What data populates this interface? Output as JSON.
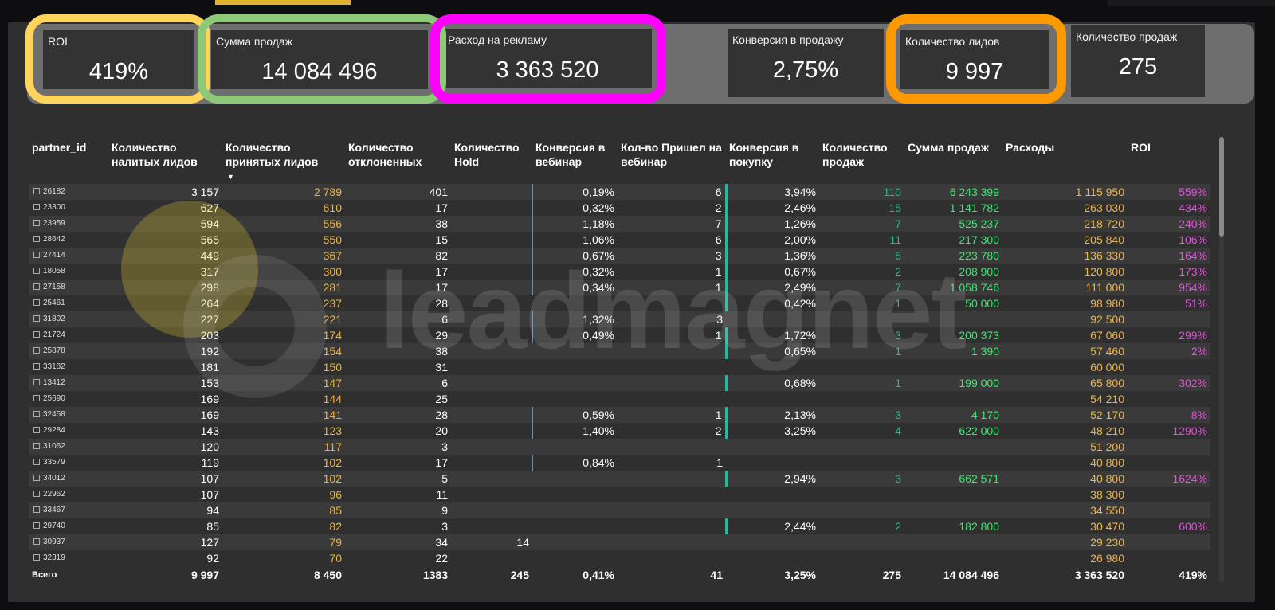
{
  "kpis": [
    {
      "label": "ROI",
      "value": "419%"
    },
    {
      "label": "Сумма продаж",
      "value": "14 084 496"
    },
    {
      "label": "Расход на рекламу",
      "value": "3 363 520"
    },
    {
      "label": "Конверсия в продажу",
      "value": "2,75%"
    },
    {
      "label": "Количество лидов",
      "value": "9 997"
    },
    {
      "label": "Количество продаж",
      "value": "275"
    }
  ],
  "highlight_colors": {
    "roi": "#ffd45a",
    "sales_sum": "#8ec97a",
    "ad_spend": "#ff00ff",
    "leads": "#ff9900"
  },
  "watermark": "leadmagnet",
  "table": {
    "headers": [
      "partner_id",
      "Количество налитых лидов",
      "Количество принятых лидов",
      "Количество отклоненных",
      "Количество Hold",
      "Конверсия в вебинар",
      "Кол-во Пришел на вебинар",
      "Конверсия в покупку",
      "Количество продаж",
      "Сумма продаж",
      "Расходы",
      "ROI"
    ],
    "sort_indicator": "▼",
    "rows": [
      [
        "26182",
        "3 157",
        "2 789",
        "401",
        "",
        "0,19%",
        "6",
        "3,94%",
        "110",
        "6 243 399",
        "1 115 950",
        "559%"
      ],
      [
        "23300",
        "627",
        "610",
        "17",
        "",
        "0,32%",
        "2",
        "2,46%",
        "15",
        "1 141 782",
        "263 030",
        "434%"
      ],
      [
        "23959",
        "594",
        "556",
        "38",
        "",
        "1,18%",
        "7",
        "1,26%",
        "7",
        "525 237",
        "218 720",
        "240%"
      ],
      [
        "28642",
        "565",
        "550",
        "15",
        "",
        "1,06%",
        "6",
        "2,00%",
        "11",
        "217 300",
        "205 840",
        "106%"
      ],
      [
        "27414",
        "449",
        "367",
        "82",
        "",
        "0,67%",
        "3",
        "1,36%",
        "5",
        "223 780",
        "136 330",
        "164%"
      ],
      [
        "18058",
        "317",
        "300",
        "17",
        "",
        "0,32%",
        "1",
        "0,67%",
        "2",
        "208 900",
        "120 800",
        "173%"
      ],
      [
        "27158",
        "298",
        "281",
        "17",
        "",
        "0,34%",
        "1",
        "2,49%",
        "7",
        "1 058 746",
        "111 000",
        "954%"
      ],
      [
        "25461",
        "264",
        "237",
        "28",
        "",
        "",
        "",
        "0,42%",
        "1",
        "50 000",
        "98 980",
        "51%"
      ],
      [
        "31802",
        "227",
        "221",
        "6",
        "",
        "1,32%",
        "3",
        "",
        "",
        "",
        "92 500",
        ""
      ],
      [
        "21724",
        "203",
        "174",
        "29",
        "",
        "0,49%",
        "1",
        "1,72%",
        "3",
        "200 373",
        "67 060",
        "299%"
      ],
      [
        "25878",
        "192",
        "154",
        "38",
        "",
        "",
        "",
        "0,65%",
        "1",
        "1 390",
        "57 460",
        "2%"
      ],
      [
        "33182",
        "181",
        "150",
        "31",
        "",
        "",
        "",
        "",
        "",
        "",
        "60 000",
        ""
      ],
      [
        "13412",
        "153",
        "147",
        "6",
        "",
        "",
        "",
        "0,68%",
        "1",
        "199 000",
        "65 800",
        "302%"
      ],
      [
        "25690",
        "169",
        "144",
        "25",
        "",
        "",
        "",
        "",
        "",
        "",
        "54 210",
        ""
      ],
      [
        "32458",
        "169",
        "141",
        "28",
        "",
        "0,59%",
        "1",
        "2,13%",
        "3",
        "4 170",
        "52 170",
        "8%"
      ],
      [
        "29284",
        "143",
        "123",
        "20",
        "",
        "1,40%",
        "2",
        "3,25%",
        "4",
        "622 000",
        "48 210",
        "1290%"
      ],
      [
        "31062",
        "120",
        "117",
        "3",
        "",
        "",
        "",
        "",
        "",
        "",
        "51 200",
        ""
      ],
      [
        "33579",
        "119",
        "102",
        "17",
        "",
        "0,84%",
        "1",
        "",
        "",
        "",
        "40 800",
        ""
      ],
      [
        "34012",
        "107",
        "102",
        "5",
        "",
        "",
        "",
        "2,94%",
        "3",
        "662 571",
        "40 800",
        "1624%"
      ],
      [
        "22962",
        "107",
        "96",
        "11",
        "",
        "",
        "",
        "",
        "",
        "",
        "38 300",
        ""
      ],
      [
        "33467",
        "94",
        "85",
        "9",
        "",
        "",
        "",
        "",
        "",
        "",
        "34 550",
        ""
      ],
      [
        "29740",
        "85",
        "82",
        "3",
        "",
        "",
        "",
        "2,44%",
        "2",
        "182 800",
        "30 470",
        "600%"
      ],
      [
        "30937",
        "127",
        "79",
        "34",
        "14",
        "",
        "",
        "",
        "",
        "",
        "29 230",
        ""
      ],
      [
        "32319",
        "92",
        "70",
        "22",
        "",
        "",
        "",
        "",
        "",
        "",
        "26 980",
        ""
      ]
    ],
    "totals": [
      "Всего",
      "9 997",
      "8 450",
      "1383",
      "245",
      "0,41%",
      "41",
      "3,25%",
      "275",
      "14 084 496",
      "3 363 520",
      "419%"
    ]
  }
}
